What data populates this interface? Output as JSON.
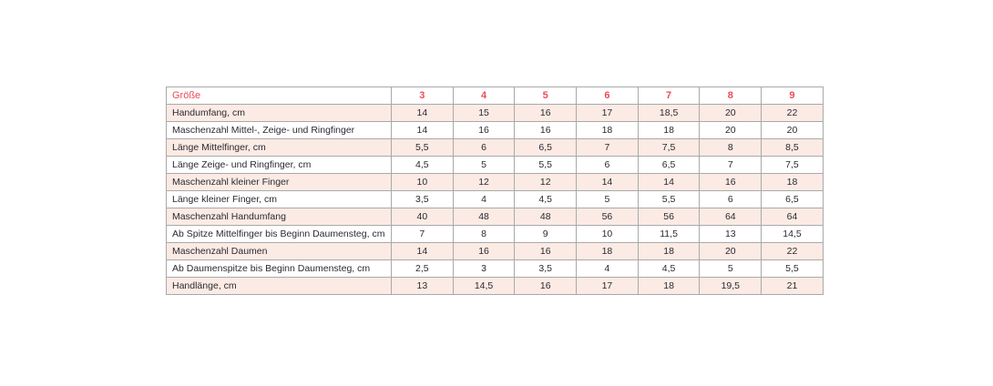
{
  "colors": {
    "accent_red": "#ee4a56",
    "row_pink": "#fcebe4",
    "row_white": "#ffffff",
    "border_gray": "#a9a9a9",
    "text_dark": "#2a2a33"
  },
  "chart_data": {
    "type": "table",
    "title": "",
    "header": {
      "label": "Größe",
      "sizes": [
        "3",
        "4",
        "5",
        "6",
        "7",
        "8",
        "9"
      ]
    },
    "rows": [
      {
        "label": "Handumfang, cm",
        "values": [
          "14",
          "15",
          "16",
          "17",
          "18,5",
          "20",
          "22"
        ]
      },
      {
        "label": "Maschenzahl Mittel-, Zeige- und Ringfinger",
        "values": [
          "14",
          "16",
          "16",
          "18",
          "18",
          "20",
          "20"
        ]
      },
      {
        "label": "Länge Mittelfinger, cm",
        "values": [
          "5,5",
          "6",
          "6,5",
          "7",
          "7,5",
          "8",
          "8,5"
        ]
      },
      {
        "label": "Länge Zeige- und Ringfinger, cm",
        "values": [
          "4,5",
          "5",
          "5,5",
          "6",
          "6,5",
          "7",
          "7,5"
        ]
      },
      {
        "label": "Maschenzahl kleiner Finger",
        "values": [
          "10",
          "12",
          "12",
          "14",
          "14",
          "16",
          "18"
        ]
      },
      {
        "label": "Länge kleiner Finger, cm",
        "values": [
          "3,5",
          "4",
          "4,5",
          "5",
          "5,5",
          "6",
          "6,5"
        ]
      },
      {
        "label": "Maschenzahl Handumfang",
        "values": [
          "40",
          "48",
          "48",
          "56",
          "56",
          "64",
          "64"
        ]
      },
      {
        "label": "Ab Spitze Mittelfinger bis Beginn Daumensteg, cm",
        "values": [
          "7",
          "8",
          "9",
          "10",
          "11,5",
          "13",
          "14,5"
        ]
      },
      {
        "label": "Maschenzahl Daumen",
        "values": [
          "14",
          "16",
          "16",
          "18",
          "18",
          "20",
          "22"
        ]
      },
      {
        "label": "Ab Daumenspitze bis Beginn Daumensteg, cm",
        "values": [
          "2,5",
          "3",
          "3,5",
          "4",
          "4,5",
          "5",
          "5,5"
        ]
      },
      {
        "label": "Handlänge, cm",
        "values": [
          "13",
          "14,5",
          "16",
          "17",
          "18",
          "19,5",
          "21"
        ]
      }
    ]
  }
}
